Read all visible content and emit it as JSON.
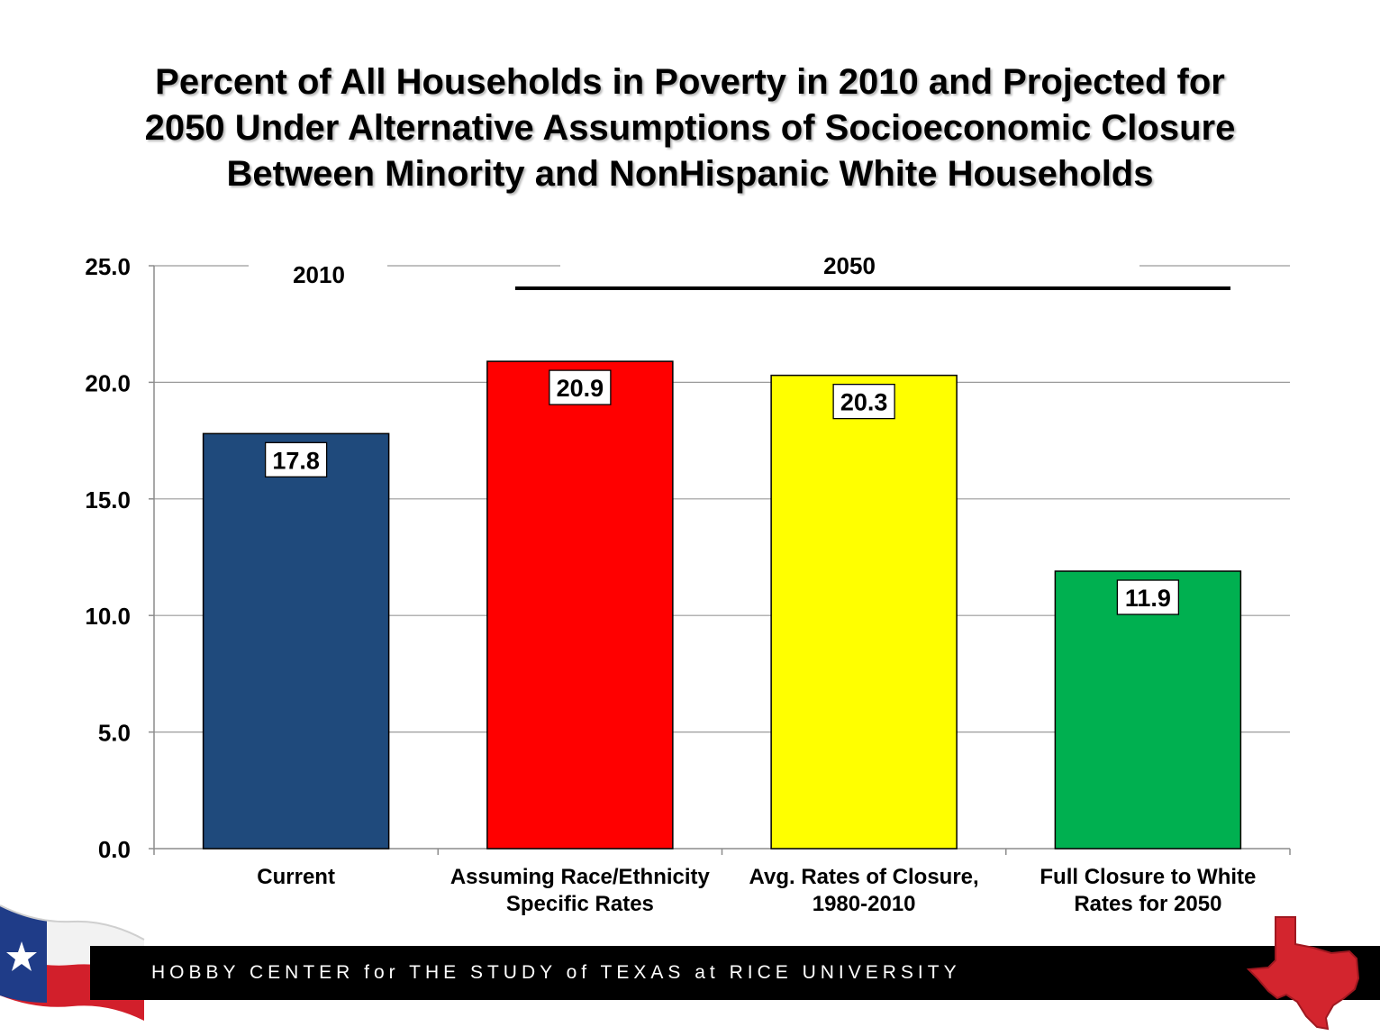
{
  "title_lines": [
    "Percent of All Households in Poverty in 2010 and Projected for",
    "2050 Under Alternative Assumptions of Socioeconomic Closure",
    "Between Minority and NonHispanic White Households"
  ],
  "chart_data": {
    "type": "bar",
    "title": "Percent of All Households in Poverty in 2010 and Projected for 2050 Under Alternative Assumptions of Socioeconomic Closure Between Minority and NonHispanic White Households",
    "categories": [
      [
        "Current"
      ],
      [
        "Assuming Race/Ethnicity",
        "Specific Rates"
      ],
      [
        "Avg. Rates of Closure,",
        "1980-2010"
      ],
      [
        "Full Closure to White",
        "Rates for 2050"
      ]
    ],
    "values": [
      17.8,
      20.9,
      20.3,
      11.9
    ],
    "data_labels": [
      "17.8",
      "20.9",
      "20.3",
      "11.9"
    ],
    "bar_colors": [
      "#1f4a7c",
      "#ff0000",
      "#ffff00",
      "#00b050"
    ],
    "ylim": [
      0,
      25
    ],
    "yticks": [
      "0.0",
      "5.0",
      "10.0",
      "15.0",
      "20.0",
      "25.0"
    ],
    "xlabel": "",
    "ylabel": "",
    "grid": true,
    "annotations": [
      {
        "text": "2010",
        "period": "first-bar"
      },
      {
        "text": "2050",
        "period": "bars-2-to-4"
      }
    ]
  },
  "footer": {
    "text": "HOBBY CENTER for THE STUDY of TEXAS at RICE UNIVERSITY",
    "bar_color": "#000000"
  },
  "icons": [
    "texas-flag-icon",
    "texas-map-icon"
  ]
}
